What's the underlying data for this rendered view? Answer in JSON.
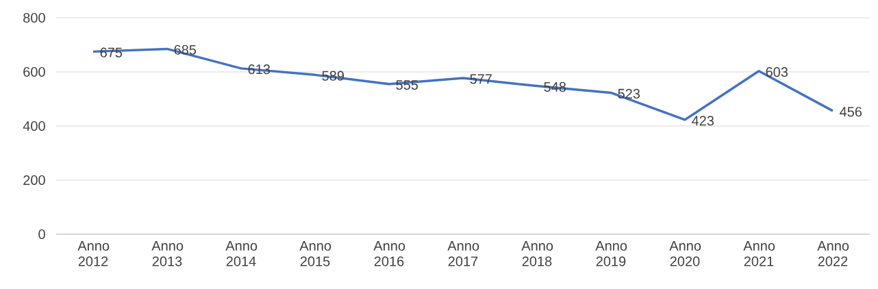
{
  "chart_data": {
    "type": "line",
    "categories": [
      "Anno 2012",
      "Anno 2013",
      "Anno 2014",
      "Anno 2015",
      "Anno 2016",
      "Anno 2017",
      "Anno 2018",
      "Anno 2019",
      "Anno 2020",
      "Anno 2021",
      "Anno 2022"
    ],
    "values": [
      675,
      685,
      613,
      589,
      555,
      577,
      548,
      523,
      423,
      603,
      456
    ],
    "color": "#4472c4",
    "ylim": [
      0,
      800
    ],
    "yticks": [
      0,
      200,
      400,
      600,
      800
    ],
    "grid": "y",
    "data_labels": true,
    "marker": "none",
    "line_style": "solid"
  }
}
